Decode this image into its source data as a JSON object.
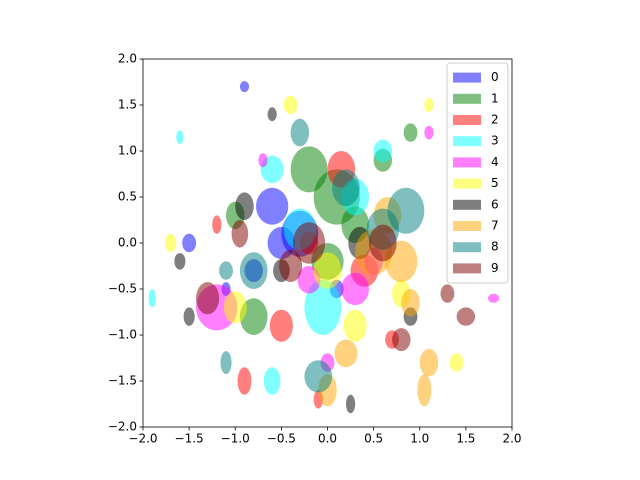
{
  "chart_data": {
    "type": "ellipse",
    "alpha": 0.5,
    "legend": "upper right",
    "xlim": [
      -2,
      2
    ],
    "ylim": [
      -2,
      2
    ],
    "xticks": [
      {
        "value": -2,
        "label": "−2.0"
      },
      {
        "value": -1.5,
        "label": "−1.5"
      },
      {
        "value": -1,
        "label": "−1.0"
      },
      {
        "value": -0.5,
        "label": "−0.5"
      },
      {
        "value": 0,
        "label": "0.0"
      },
      {
        "value": 0.5,
        "label": "0.5"
      },
      {
        "value": 1,
        "label": "1.0"
      },
      {
        "value": 1.5,
        "label": "1.5"
      },
      {
        "value": 2,
        "label": "2.0"
      }
    ],
    "yticks": [
      {
        "value": -2,
        "label": "−2.0"
      },
      {
        "value": -1.5,
        "label": "−1.5"
      },
      {
        "value": -1,
        "label": "−1.0"
      },
      {
        "value": -0.5,
        "label": "−0.5"
      },
      {
        "value": 0,
        "label": "0.0"
      },
      {
        "value": 0.5,
        "label": "0.5"
      },
      {
        "value": 1,
        "label": "1.0"
      },
      {
        "value": 1.5,
        "label": "1.5"
      },
      {
        "value": 2,
        "label": "2.0"
      }
    ],
    "series": [
      {
        "name": "0",
        "color": "#0000ff",
        "x": [
          -0.3,
          -0.6,
          -1.5,
          -0.8,
          0.1,
          -1.1,
          -0.5,
          -0.9
        ],
        "values": [
          0.1,
          0.4,
          0,
          -0.3,
          -0.5,
          -0.5,
          0,
          1.7
        ],
        "widths": [
          0.4,
          0.35,
          0.15,
          0.2,
          0.15,
          0.1,
          0.3,
          0.1
        ],
        "heights": [
          0.5,
          0.4,
          0.2,
          0.25,
          0.2,
          0.15,
          0.35,
          0.12
        ]
      },
      {
        "name": "1",
        "color": "#008000",
        "x": [
          0.1,
          -0.8,
          0.6,
          0,
          -1,
          0.9,
          -0.2,
          0.3
        ],
        "values": [
          0.5,
          -0.8,
          0.9,
          -0.2,
          0.3,
          1.2,
          0.8,
          0.2
        ],
        "widths": [
          0.5,
          0.3,
          0.2,
          0.35,
          0.2,
          0.15,
          0.4,
          0.3
        ],
        "heights": [
          0.6,
          0.4,
          0.25,
          0.4,
          0.3,
          0.2,
          0.5,
          0.4
        ]
      },
      {
        "name": "2",
        "color": "#ff0000",
        "x": [
          0.15,
          -0.5,
          -0.2,
          0.7,
          -0.9,
          -1.2,
          0.4,
          -0.1
        ],
        "values": [
          0.8,
          -0.9,
          0,
          -1.05,
          -1.5,
          0.2,
          -0.3,
          -1.7
        ],
        "widths": [
          0.3,
          0.25,
          0.2,
          0.15,
          0.15,
          0.1,
          0.3,
          0.1
        ],
        "heights": [
          0.4,
          0.35,
          0.25,
          0.2,
          0.3,
          0.2,
          0.35,
          0.2
        ]
      },
      {
        "name": "3",
        "color": "#00ffff",
        "x": [
          -0.3,
          -0.05,
          -0.6,
          0.3,
          -1.6,
          -0.6,
          0.6,
          -1.9
        ],
        "values": [
          0.15,
          -0.7,
          -1.5,
          0.5,
          1.15,
          0.8,
          1,
          -0.6
        ],
        "widths": [
          0.35,
          0.4,
          0.18,
          0.3,
          0.08,
          0.25,
          0.2,
          0.08
        ],
        "heights": [
          0.45,
          0.6,
          0.3,
          0.4,
          0.15,
          0.3,
          0.25,
          0.2
        ]
      },
      {
        "name": "4",
        "color": "#ff00ff",
        "x": [
          -1.2,
          0.3,
          0.5,
          1.1,
          -0.2,
          1.8,
          0,
          -0.7
        ],
        "values": [
          -0.7,
          -0.5,
          -0.2,
          1.2,
          -0.4,
          -0.6,
          -1.3,
          0.9
        ],
        "widths": [
          0.45,
          0.3,
          0.2,
          0.1,
          0.25,
          0.12,
          0.15,
          0.1
        ],
        "heights": [
          0.5,
          0.35,
          0.3,
          0.15,
          0.3,
          0.1,
          0.2,
          0.15
        ]
      },
      {
        "name": "5",
        "color": "#ffff00",
        "x": [
          0,
          -1,
          0.8,
          1.4,
          -0.4,
          1.1,
          -1.7,
          0.3
        ],
        "values": [
          -0.3,
          -0.7,
          -0.55,
          -1.3,
          1.5,
          1.5,
          0,
          -0.9
        ],
        "widths": [
          0.3,
          0.25,
          0.2,
          0.15,
          0.15,
          0.1,
          0.12,
          0.25
        ],
        "heights": [
          0.4,
          0.35,
          0.3,
          0.2,
          0.2,
          0.15,
          0.2,
          0.35
        ]
      },
      {
        "name": "6",
        "color": "#000000",
        "x": [
          -0.9,
          -0.5,
          0.35,
          -1.6,
          0.9,
          -1.5,
          0.25,
          -0.6
        ],
        "values": [
          0.4,
          -0.3,
          0,
          -0.2,
          -0.8,
          -0.8,
          -1.75,
          1.4
        ],
        "widths": [
          0.2,
          0.18,
          0.25,
          0.12,
          0.15,
          0.12,
          0.1,
          0.1
        ],
        "heights": [
          0.3,
          0.25,
          0.35,
          0.18,
          0.2,
          0.2,
          0.2,
          0.15
        ]
      },
      {
        "name": "7",
        "color": "#ffa500",
        "x": [
          0.5,
          1.1,
          0.8,
          0,
          1.05,
          0.2,
          0.65,
          0.9
        ],
        "values": [
          -0.1,
          -1.3,
          -0.2,
          -1.6,
          -1.6,
          -1.2,
          0.3,
          -0.65
        ],
        "widths": [
          0.4,
          0.2,
          0.35,
          0.2,
          0.15,
          0.25,
          0.3,
          0.2
        ],
        "heights": [
          0.5,
          0.3,
          0.45,
          0.35,
          0.35,
          0.3,
          0.4,
          0.3
        ]
      },
      {
        "name": "8",
        "color": "#008080",
        "x": [
          0.85,
          -0.1,
          -0.8,
          -1.1,
          0.2,
          -0.3,
          0.6,
          -1.1
        ],
        "values": [
          0.35,
          -1.45,
          -0.3,
          -1.3,
          0.6,
          1.2,
          0.15,
          -0.3
        ],
        "widths": [
          0.4,
          0.3,
          0.3,
          0.12,
          0.3,
          0.2,
          0.35,
          0.15
        ],
        "heights": [
          0.5,
          0.35,
          0.4,
          0.25,
          0.4,
          0.3,
          0.45,
          0.2
        ]
      },
      {
        "name": "9",
        "color": "#800000",
        "x": [
          0.6,
          -1.3,
          -0.2,
          1.5,
          -0.4,
          1.3,
          0.8,
          -0.95
        ],
        "values": [
          0,
          -0.6,
          0,
          -0.8,
          -0.25,
          -0.55,
          -1.05,
          0.1
        ],
        "widths": [
          0.3,
          0.25,
          0.35,
          0.2,
          0.25,
          0.15,
          0.2,
          0.18
        ],
        "heights": [
          0.4,
          0.35,
          0.45,
          0.2,
          0.35,
          0.2,
          0.25,
          0.3
        ]
      }
    ]
  }
}
